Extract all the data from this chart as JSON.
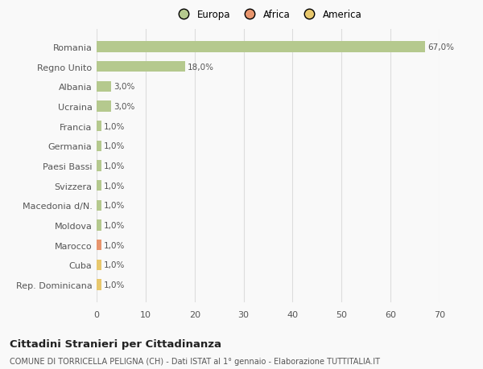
{
  "categories": [
    "Romania",
    "Regno Unito",
    "Albania",
    "Ucraina",
    "Francia",
    "Germania",
    "Paesi Bassi",
    "Svizzera",
    "Macedonia d/N.",
    "Moldova",
    "Marocco",
    "Cuba",
    "Rep. Dominicana"
  ],
  "values": [
    67.0,
    18.0,
    3.0,
    3.0,
    1.0,
    1.0,
    1.0,
    1.0,
    1.0,
    1.0,
    1.0,
    1.0,
    1.0
  ],
  "labels": [
    "67,0%",
    "18,0%",
    "3,0%",
    "3,0%",
    "1,0%",
    "1,0%",
    "1,0%",
    "1,0%",
    "1,0%",
    "1,0%",
    "1,0%",
    "1,0%",
    "1,0%"
  ],
  "colors": [
    "#b5c98e",
    "#b5c98e",
    "#b5c98e",
    "#b5c98e",
    "#b5c98e",
    "#b5c98e",
    "#b5c98e",
    "#b5c98e",
    "#b5c98e",
    "#b5c98e",
    "#e8956d",
    "#e8c86d",
    "#e8c86d"
  ],
  "legend": [
    {
      "label": "Europa",
      "color": "#b5c98e"
    },
    {
      "label": "Africa",
      "color": "#e8956d"
    },
    {
      "label": "America",
      "color": "#e8c86d"
    }
  ],
  "xlim": [
    0,
    70
  ],
  "xticks": [
    0,
    10,
    20,
    30,
    40,
    50,
    60,
    70
  ],
  "title_main": "Cittadini Stranieri per Cittadinanza",
  "title_sub": "COMUNE DI TORRICELLA PELIGNA (CH) - Dati ISTAT al 1° gennaio - Elaborazione TUTTITALIA.IT",
  "background_color": "#f9f9f9",
  "grid_color": "#dddddd",
  "bar_label_color": "#555555",
  "category_label_color": "#555555"
}
